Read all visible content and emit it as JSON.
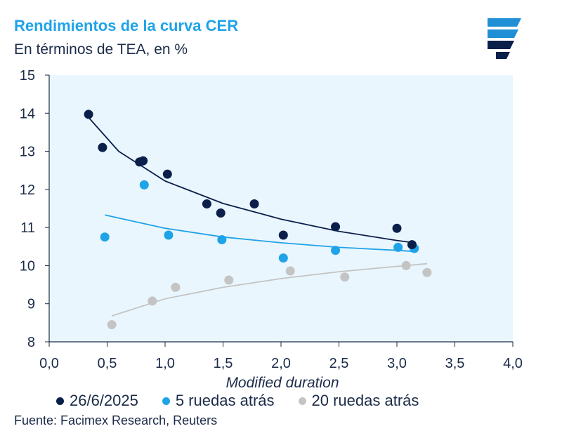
{
  "header": {
    "title": "Rendimientos de la curva CER",
    "subtitle": "En términos de TEA, en %"
  },
  "logo": {
    "icon": "facimex-logo-icon",
    "color": "#1f8fd6"
  },
  "source": "Fuente: Facimex Research, Reuters",
  "chart_data": {
    "type": "scatter",
    "title": "Rendimientos de la curva CER",
    "subtitle": "En términos de TEA, en %",
    "xlabel": "Modified duration",
    "ylabel": "",
    "xlim": [
      0,
      4
    ],
    "ylim": [
      8,
      15
    ],
    "xticks": [
      "0,0",
      "0,5",
      "1,0",
      "1,5",
      "2,0",
      "2,5",
      "3,0",
      "3,5",
      "4,0"
    ],
    "xtick_values": [
      0,
      0.5,
      1,
      1.5,
      2,
      2.5,
      3,
      3.5,
      4
    ],
    "yticks": [
      "8",
      "9",
      "10",
      "11",
      "12",
      "13",
      "14",
      "15"
    ],
    "ytick_values": [
      8,
      9,
      10,
      11,
      12,
      13,
      14,
      15
    ],
    "plot_background": "#eaf6fd",
    "legend_position": "bottom",
    "series": [
      {
        "name": "26/6/2025",
        "color": "#0b1f4b",
        "points": [
          [
            0.34,
            13.97
          ],
          [
            0.46,
            13.1
          ],
          [
            0.78,
            12.72
          ],
          [
            0.81,
            12.75
          ],
          [
            1.02,
            12.4
          ],
          [
            1.36,
            11.62
          ],
          [
            1.48,
            11.38
          ],
          [
            1.77,
            11.62
          ],
          [
            2.02,
            10.8
          ],
          [
            2.47,
            11.02
          ],
          [
            3.0,
            10.98
          ],
          [
            3.13,
            10.55
          ]
        ],
        "trend": [
          [
            0.33,
            13.92
          ],
          [
            0.6,
            13.0
          ],
          [
            1.0,
            12.22
          ],
          [
            1.5,
            11.63
          ],
          [
            2.0,
            11.22
          ],
          [
            2.5,
            10.9
          ],
          [
            3.0,
            10.66
          ],
          [
            3.15,
            10.6
          ]
        ]
      },
      {
        "name": "5 ruedas atrás",
        "color": "#1fa3e8",
        "points": [
          [
            0.48,
            10.75
          ],
          [
            0.82,
            12.12
          ],
          [
            1.03,
            10.8
          ],
          [
            1.49,
            10.68
          ],
          [
            2.02,
            10.2
          ],
          [
            2.47,
            10.4
          ],
          [
            3.01,
            10.48
          ],
          [
            3.15,
            10.45
          ]
        ],
        "trend": [
          [
            0.48,
            11.33
          ],
          [
            1.0,
            10.98
          ],
          [
            1.5,
            10.75
          ],
          [
            2.0,
            10.6
          ],
          [
            2.5,
            10.48
          ],
          [
            3.0,
            10.4
          ],
          [
            3.15,
            10.37
          ]
        ]
      },
      {
        "name": "20 ruedas atrás",
        "color": "#c4c4c4",
        "points": [
          [
            0.54,
            8.45
          ],
          [
            0.89,
            9.07
          ],
          [
            1.09,
            9.43
          ],
          [
            1.55,
            9.62
          ],
          [
            2.08,
            9.86
          ],
          [
            2.55,
            9.7
          ],
          [
            3.08,
            10.0
          ],
          [
            3.26,
            9.82
          ]
        ],
        "trend": [
          [
            0.54,
            8.68
          ],
          [
            1.0,
            9.13
          ],
          [
            1.5,
            9.43
          ],
          [
            2.0,
            9.66
          ],
          [
            2.5,
            9.84
          ],
          [
            3.0,
            9.98
          ],
          [
            3.26,
            10.05
          ]
        ]
      }
    ]
  }
}
